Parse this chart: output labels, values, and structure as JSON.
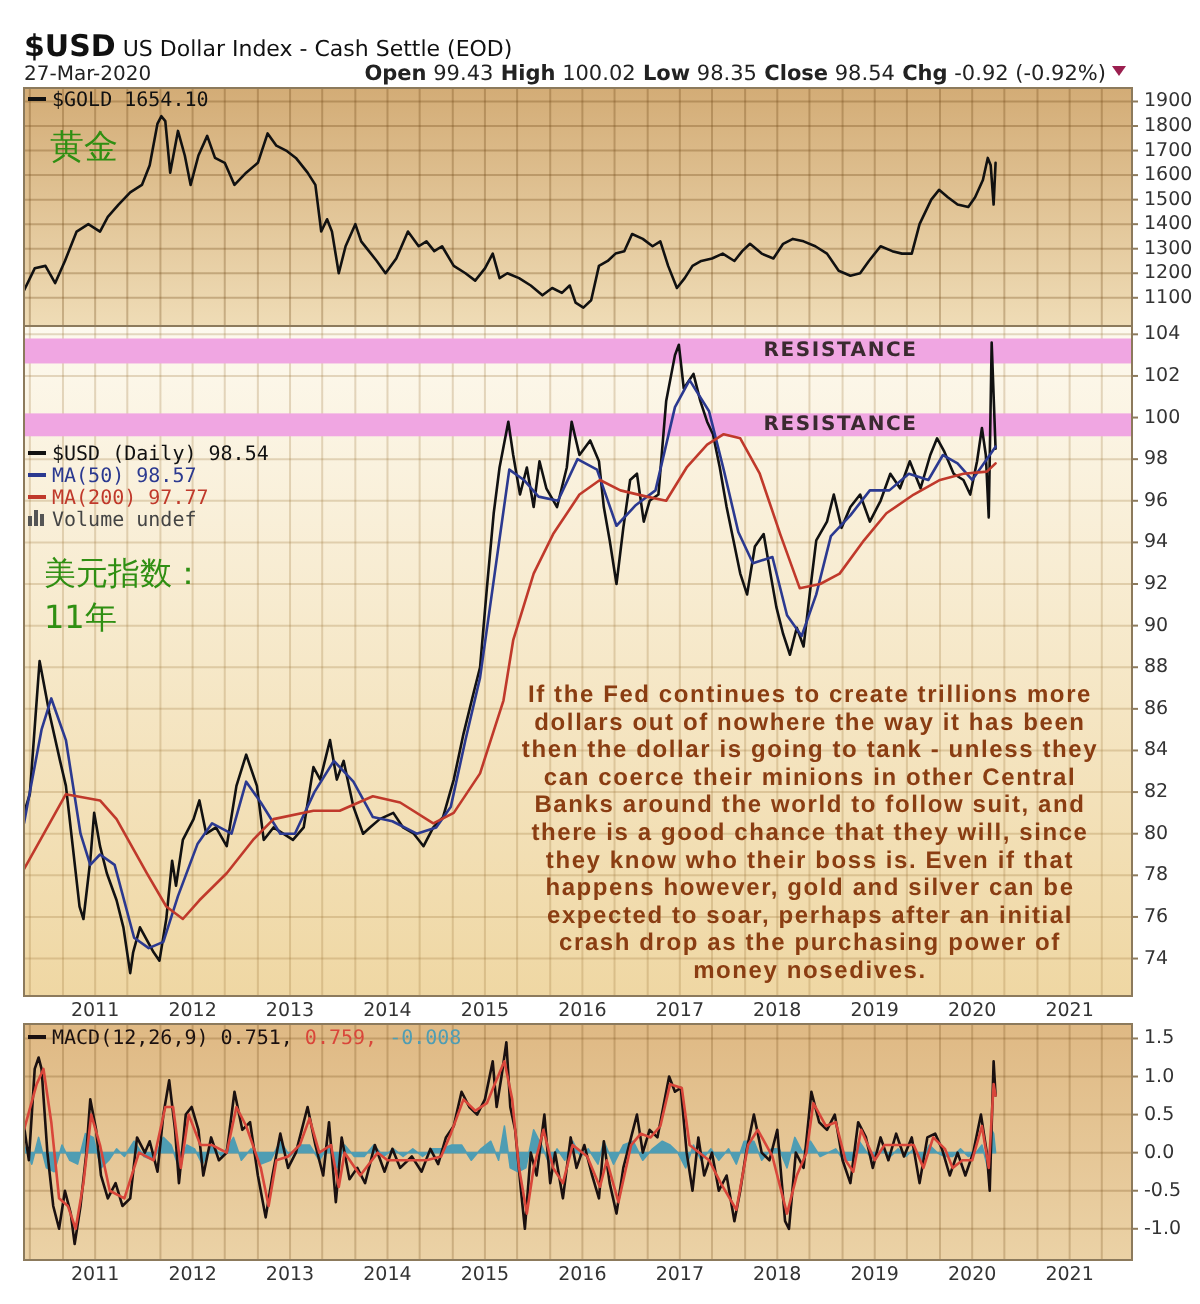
{
  "chart_data": [
    {
      "type": "line",
      "title": "$USD US Dollar Index - Cash Settle (EOD)",
      "subtitle": "27-Mar-2020",
      "annotations": [
        "Open 99.43 High 100.02 Low 98.35 Close 98.54 Chg -0.92 (-0.92%)",
        "黄金"
      ],
      "xlim": [
        2010.27,
        2021.64
      ],
      "ylim": [
        985,
        1955
      ],
      "xticks": [
        {
          "value": 2010.33,
          "label": null
        },
        {
          "value": 2010.67,
          "label": null
        },
        2011,
        {
          "value": 2011.33,
          "label": null
        },
        {
          "value": 2011.67,
          "label": null
        },
        2012,
        {
          "value": 2012.33,
          "label": null
        },
        {
          "value": 2012.67,
          "label": null
        },
        2013,
        {
          "value": 2013.33,
          "label": null
        },
        {
          "value": 2013.67,
          "label": null
        },
        2014,
        {
          "value": 2014.33,
          "label": null
        },
        {
          "value": 2014.67,
          "label": null
        },
        2015,
        {
          "value": 2015.33,
          "label": null
        },
        {
          "value": 2015.67,
          "label": null
        },
        2016,
        {
          "value": 2016.33,
          "label": null
        },
        {
          "value": 2016.67,
          "label": null
        },
        2017,
        {
          "value": 2017.33,
          "label": null
        },
        {
          "value": 2017.67,
          "label": null
        },
        2018,
        {
          "value": 2018.33,
          "label": null
        },
        {
          "value": 2018.67,
          "label": null
        },
        2019,
        {
          "value": 2019.33,
          "label": null
        },
        {
          "value": 2019.67,
          "label": null
        },
        2020,
        {
          "value": 2020.33,
          "label": null
        },
        {
          "value": 2020.67,
          "label": null
        },
        2021,
        {
          "value": 2021.33,
          "label": null
        }
      ],
      "yticks": [
        1100,
        1200,
        1300,
        1400,
        1500,
        1600,
        1700,
        1800,
        1900
      ],
      "tick_labels": "y",
      "grid": true,
      "legend": "top left",
      "series": [
        {
          "name": "$GOLD 1654.10",
          "color": "#111111",
          "x": [
            2010.27,
            2010.38,
            2010.49,
            2010.59,
            2010.69,
            2010.81,
            2010.93,
            2011.05,
            2011.13,
            2011.24,
            2011.36,
            2011.48,
            2011.56,
            2011.64,
            2011.68,
            2011.72,
            2011.77,
            2011.85,
            2011.92,
            2011.98,
            2012.06,
            2012.15,
            2012.23,
            2012.33,
            2012.43,
            2012.55,
            2012.67,
            2012.77,
            2012.86,
            2012.96,
            2013.06,
            2013.18,
            2013.26,
            2013.32,
            2013.38,
            2013.43,
            2013.5,
            2013.57,
            2013.67,
            2013.73,
            2013.81,
            2013.89,
            2013.98,
            2014.09,
            2014.21,
            2014.32,
            2014.4,
            2014.48,
            2014.56,
            2014.68,
            2014.8,
            2014.9,
            2015,
            2015.08,
            2015.15,
            2015.23,
            2015.35,
            2015.47,
            2015.59,
            2015.69,
            2015.79,
            2015.87,
            2015.93,
            2016.01,
            2016.09,
            2016.17,
            2016.26,
            2016.34,
            2016.43,
            2016.51,
            2016.62,
            2016.72,
            2016.8,
            2016.88,
            2016.97,
            2017.05,
            2017.13,
            2017.22,
            2017.33,
            2017.44,
            2017.56,
            2017.64,
            2017.72,
            2017.84,
            2017.96,
            2018.06,
            2018.16,
            2018.27,
            2018.39,
            2018.51,
            2018.63,
            2018.75,
            2018.85,
            2018.94,
            2019.06,
            2019.18,
            2019.28,
            2019.38,
            2019.46,
            2019.58,
            2019.66,
            2019.75,
            2019.85,
            2019.96,
            2020.03,
            2020.11,
            2020.16,
            2020.19,
            2020.22,
            2020.24
          ],
          "values": [
            1130,
            1220,
            1230,
            1160,
            1250,
            1370,
            1400,
            1370,
            1430,
            1480,
            1530,
            1560,
            1640,
            1810,
            1840,
            1820,
            1610,
            1780,
            1680,
            1560,
            1680,
            1760,
            1670,
            1650,
            1560,
            1610,
            1650,
            1770,
            1720,
            1700,
            1670,
            1610,
            1560,
            1370,
            1420,
            1370,
            1200,
            1310,
            1400,
            1330,
            1290,
            1250,
            1200,
            1260,
            1370,
            1310,
            1330,
            1290,
            1310,
            1230,
            1200,
            1170,
            1220,
            1280,
            1180,
            1200,
            1180,
            1150,
            1110,
            1140,
            1120,
            1150,
            1080,
            1060,
            1090,
            1230,
            1250,
            1280,
            1290,
            1360,
            1340,
            1310,
            1330,
            1230,
            1140,
            1180,
            1230,
            1250,
            1260,
            1280,
            1250,
            1290,
            1320,
            1280,
            1260,
            1320,
            1340,
            1330,
            1310,
            1280,
            1210,
            1190,
            1200,
            1250,
            1310,
            1290,
            1280,
            1280,
            1400,
            1500,
            1540,
            1510,
            1480,
            1470,
            1510,
            1580,
            1670,
            1640,
            1480,
            1650
          ]
        }
      ]
    },
    {
      "type": "line",
      "annotations": [
        "Volume undef",
        "美元指数：",
        "11年",
        "If the Fed continues to create trillions more dollars out of nowhere the way it has been then the dollar is going to tank - unless they can coerce their minions in other Central Banks around the world to follow suit, and there is a good chance that they will, since they know who their boss is. Even if that happens however, gold and silver can be expected to soar, perhaps after an initial crash drop as the purchasing power of money nosedives."
      ],
      "xlim": [
        2010.27,
        2021.64
      ],
      "ylim": [
        72.2,
        104.4
      ],
      "xticks": [
        {
          "value": 2010.33,
          "label": null
        },
        {
          "value": 2010.67,
          "label": null
        },
        2011,
        {
          "value": 2011.33,
          "label": null
        },
        {
          "value": 2011.67,
          "label": null
        },
        2012,
        {
          "value": 2012.33,
          "label": null
        },
        {
          "value": 2012.67,
          "label": null
        },
        2013,
        {
          "value": 2013.33,
          "label": null
        },
        {
          "value": 2013.67,
          "label": null
        },
        2014,
        {
          "value": 2014.33,
          "label": null
        },
        {
          "value": 2014.67,
          "label": null
        },
        2015,
        {
          "value": 2015.33,
          "label": null
        },
        {
          "value": 2015.67,
          "label": null
        },
        2016,
        {
          "value": 2016.33,
          "label": null
        },
        {
          "value": 2016.67,
          "label": null
        },
        2017,
        {
          "value": 2017.33,
          "label": null
        },
        {
          "value": 2017.67,
          "label": null
        },
        2018,
        {
          "value": 2018.33,
          "label": null
        },
        {
          "value": 2018.67,
          "label": null
        },
        2019,
        {
          "value": 2019.33,
          "label": null
        },
        {
          "value": 2019.67,
          "label": null
        },
        2020,
        {
          "value": 2020.33,
          "label": null
        },
        {
          "value": 2020.67,
          "label": null
        },
        2021,
        {
          "value": 2021.33,
          "label": null
        }
      ],
      "yticks": [
        74,
        76,
        78,
        80,
        82,
        84,
        86,
        88,
        90,
        92,
        94,
        96,
        98,
        100,
        102,
        104
      ],
      "grid": true,
      "legend": "top left",
      "bands": [
        {
          "axis": "y",
          "from": 102.6,
          "to": 103.8,
          "label": "RESISTANCE",
          "color": "#f0a6e2"
        },
        {
          "axis": "y",
          "from": 99.1,
          "to": 100.2,
          "label": "RESISTANCE",
          "color": "#f0a6e2"
        }
      ],
      "series": [
        {
          "name": "$USD (Daily) 98.54",
          "color": "#111111",
          "x": [
            2010.27,
            2010.33,
            2010.4,
            2010.43,
            2010.53,
            2010.64,
            2010.7,
            2010.77,
            2010.84,
            2010.88,
            2010.95,
            2010.99,
            2011.05,
            2011.12,
            2011.22,
            2011.29,
            2011.36,
            2011.39,
            2011.46,
            2011.53,
            2011.6,
            2011.66,
            2011.73,
            2011.79,
            2011.83,
            2011.9,
            2012.01,
            2012.07,
            2012.14,
            2012.24,
            2012.35,
            2012.45,
            2012.55,
            2012.66,
            2012.73,
            2012.83,
            2012.93,
            2013.03,
            2013.14,
            2013.24,
            2013.31,
            2013.41,
            2013.48,
            2013.55,
            2013.65,
            2013.75,
            2013.82,
            2013.92,
            2014.06,
            2014.16,
            2014.27,
            2014.37,
            2014.47,
            2014.57,
            2014.68,
            2014.78,
            2014.88,
            2014.95,
            2015.02,
            2015.09,
            2015.15,
            2015.24,
            2015.29,
            2015.36,
            2015.43,
            2015.5,
            2015.56,
            2015.63,
            2015.74,
            2015.84,
            2015.89,
            2015.97,
            2016.08,
            2016.17,
            2016.22,
            2016.28,
            2016.35,
            2016.42,
            2016.49,
            2016.56,
            2016.63,
            2016.69,
            2016.78,
            2016.86,
            2016.95,
            2016.99,
            2017.04,
            2017.14,
            2017.21,
            2017.28,
            2017.34,
            2017.41,
            2017.48,
            2017.55,
            2017.62,
            2017.69,
            2017.77,
            2017.86,
            2017.93,
            2017.99,
            2018.06,
            2018.13,
            2018.2,
            2018.27,
            2018.34,
            2018.4,
            2018.51,
            2018.58,
            2018.66,
            2018.75,
            2018.85,
            2018.95,
            2019.06,
            2019.16,
            2019.26,
            2019.36,
            2019.47,
            2019.57,
            2019.64,
            2019.71,
            2019.81,
            2019.91,
            2019.98,
            2020.05,
            2020.1,
            2020.14,
            2020.17,
            2020.2,
            2020.24
          ],
          "values": [
            81,
            81.9,
            86.4,
            88.3,
            85.8,
            83.5,
            82.3,
            79.4,
            76.5,
            75.9,
            78.7,
            81,
            79.4,
            78.1,
            76.8,
            75.5,
            73.3,
            74.3,
            75.5,
            74.9,
            74.3,
            73.9,
            75.9,
            78.7,
            77.5,
            79.7,
            80.7,
            81.6,
            80,
            80.3,
            79.4,
            82.3,
            83.8,
            82.3,
            79.7,
            80.3,
            80,
            79.7,
            80.3,
            83.2,
            82.6,
            84.5,
            82.6,
            83.5,
            81.3,
            80,
            80.3,
            80.7,
            81,
            80.3,
            80,
            79.4,
            80.3,
            80.8,
            82.6,
            84.8,
            86.7,
            88,
            91.8,
            95.4,
            97.6,
            99.8,
            98.2,
            96.3,
            97.6,
            95.7,
            97.9,
            96.6,
            95.7,
            97.6,
            99.8,
            98.2,
            98.9,
            97.9,
            95.7,
            94.1,
            92,
            94.7,
            97,
            97.3,
            95,
            96,
            96.3,
            100.8,
            103,
            103.5,
            101.4,
            102.1,
            100.8,
            99.8,
            99.2,
            97.6,
            95.7,
            94.1,
            92.5,
            91.5,
            93.8,
            94.4,
            92.5,
            90.9,
            89.6,
            88.6,
            89.9,
            89,
            91.8,
            94.1,
            95,
            96.3,
            94.7,
            95.7,
            96.3,
            95,
            96,
            97.3,
            96.6,
            97.9,
            96.6,
            98.2,
            99,
            98.4,
            97.3,
            97,
            96.3,
            97.9,
            99.5,
            98.2,
            95.2,
            103.6,
            98.5
          ]
        },
        {
          "name": "MA(50) 98.57",
          "color": "#2b3990",
          "x": [
            2010.27,
            2010.45,
            2010.55,
            2010.7,
            2010.85,
            2010.95,
            2011.05,
            2011.2,
            2011.4,
            2011.55,
            2011.7,
            2011.85,
            2012.05,
            2012.2,
            2012.4,
            2012.55,
            2012.7,
            2012.9,
            2013.05,
            2013.25,
            2013.45,
            2013.65,
            2013.85,
            2014.05,
            2014.3,
            2014.5,
            2014.65,
            2014.8,
            2014.95,
            2015.1,
            2015.25,
            2015.4,
            2015.55,
            2015.75,
            2015.95,
            2016.15,
            2016.35,
            2016.55,
            2016.75,
            2016.95,
            2017.1,
            2017.3,
            2017.45,
            2017.6,
            2017.75,
            2017.95,
            2018.1,
            2018.25,
            2018.4,
            2018.55,
            2018.75,
            2018.95,
            2019.15,
            2019.35,
            2019.55,
            2019.7,
            2019.85,
            2020,
            2020.15,
            2020.24
          ],
          "values": [
            80.5,
            85,
            86.5,
            84.5,
            80,
            78.5,
            79,
            78.5,
            75,
            74.5,
            74.8,
            77,
            79.5,
            80.5,
            80,
            82.5,
            81.5,
            80,
            80,
            82,
            83.5,
            82.5,
            80.8,
            80.6,
            80,
            80.3,
            81.3,
            84.5,
            87.5,
            92.5,
            97.5,
            97,
            96.2,
            96,
            98,
            97.5,
            94.8,
            95.8,
            96.5,
            100.5,
            101.8,
            100.3,
            97.5,
            94.5,
            93,
            93.3,
            90.5,
            89.5,
            91.5,
            94.3,
            95.3,
            96.5,
            96.5,
            97.3,
            97,
            98.2,
            97.8,
            97,
            98,
            98.6
          ]
        },
        {
          "name": "MA(200) 97.77",
          "color": "#c0392b",
          "x": [
            2010.27,
            2010.7,
            2011.05,
            2011.22,
            2011.53,
            2011.73,
            2011.9,
            2012.07,
            2012.35,
            2012.62,
            2012.83,
            2013.24,
            2013.51,
            2013.85,
            2014.13,
            2014.47,
            2014.68,
            2014.95,
            2015.19,
            2015.29,
            2015.5,
            2015.7,
            2015.97,
            2016.18,
            2016.39,
            2016.66,
            2016.86,
            2017.07,
            2017.28,
            2017.45,
            2017.62,
            2017.82,
            2018.03,
            2018.23,
            2018.44,
            2018.64,
            2018.89,
            2019.12,
            2019.4,
            2019.67,
            2019.91,
            2020.15,
            2020.24
          ],
          "values": [
            78.3,
            81.9,
            81.6,
            80.7,
            78.1,
            76.5,
            75.9,
            76.8,
            78.1,
            79.7,
            80.7,
            81.1,
            81.1,
            81.8,
            81.5,
            80.5,
            81,
            82.9,
            86.4,
            89.3,
            92.5,
            94.4,
            96.3,
            97,
            96.5,
            96.2,
            96,
            97.6,
            98.7,
            99.2,
            99,
            97.3,
            94.4,
            91.8,
            92,
            92.5,
            94.1,
            95.4,
            96.3,
            97,
            97.3,
            97.4,
            97.8
          ]
        }
      ]
    },
    {
      "type": "line",
      "xlim": [
        2010.27,
        2021.64
      ],
      "ylim": [
        -1.41,
        1.69
      ],
      "xticks": [
        {
          "value": 2010.33,
          "label": null
        },
        {
          "value": 2010.67,
          "label": null
        },
        2011,
        {
          "value": 2011.33,
          "label": null
        },
        {
          "value": 2011.67,
          "label": null
        },
        2012,
        {
          "value": 2012.33,
          "label": null
        },
        {
          "value": 2012.67,
          "label": null
        },
        2013,
        {
          "value": 2013.33,
          "label": null
        },
        {
          "value": 2013.67,
          "label": null
        },
        2014,
        {
          "value": 2014.33,
          "label": null
        },
        {
          "value": 2014.67,
          "label": null
        },
        2015,
        {
          "value": 2015.33,
          "label": null
        },
        {
          "value": 2015.67,
          "label": null
        },
        2016,
        {
          "value": 2016.33,
          "label": null
        },
        {
          "value": 2016.67,
          "label": null
        },
        2017,
        {
          "value": 2017.33,
          "label": null
        },
        {
          "value": 2017.67,
          "label": null
        },
        2018,
        {
          "value": 2018.33,
          "label": null
        },
        {
          "value": 2018.67,
          "label": null
        },
        2019,
        {
          "value": 2019.33,
          "label": null
        },
        {
          "value": 2019.67,
          "label": null
        },
        2020,
        {
          "value": 2020.33,
          "label": null
        },
        {
          "value": 2020.67,
          "label": null
        },
        2021,
        {
          "value": 2021.33,
          "label": null
        }
      ],
      "yticks": [
        1.5,
        {
          "value": 1,
          "label": "1.0"
        },
        0.5,
        {
          "value": 0,
          "label": "0.0"
        },
        -0.5,
        {
          "value": -1,
          "label": "-1.0"
        }
      ],
      "grid": true,
      "legend": "top left",
      "series": [
        {
          "name": "MACD(12,26,9) 0.751,",
          "color": "#1a1010",
          "x": [
            2010.27,
            2010.32,
            2010.38,
            2010.42,
            2010.45,
            2010.51,
            2010.57,
            2010.63,
            2010.69,
            2010.75,
            2010.79,
            2010.85,
            2010.91,
            2010.95,
            2011.01,
            2011.06,
            2011.13,
            2011.21,
            2011.28,
            2011.36,
            2011.43,
            2011.51,
            2011.56,
            2011.64,
            2011.7,
            2011.76,
            2011.82,
            2011.86,
            2011.93,
            2011.99,
            2012.06,
            2012.11,
            2012.19,
            2012.27,
            2012.35,
            2012.43,
            2012.51,
            2012.59,
            2012.67,
            2012.75,
            2012.82,
            2012.9,
            2012.98,
            2013.06,
            2013.18,
            2013.26,
            2013.34,
            2013.4,
            2013.47,
            2013.53,
            2013.61,
            2013.69,
            2013.77,
            2013.87,
            2013.97,
            2014.05,
            2014.13,
            2014.25,
            2014.35,
            2014.44,
            2014.52,
            2014.6,
            2014.68,
            2014.76,
            2014.84,
            2014.92,
            2015,
            2015.08,
            2015.12,
            2015.17,
            2015.22,
            2015.26,
            2015.31,
            2015.37,
            2015.41,
            2015.47,
            2015.53,
            2015.61,
            2015.67,
            2015.72,
            2015.8,
            2015.88,
            2015.94,
            2016.02,
            2016.1,
            2016.17,
            2016.22,
            2016.28,
            2016.35,
            2016.42,
            2016.5,
            2016.56,
            2016.62,
            2016.69,
            2016.77,
            2016.83,
            2016.89,
            2016.95,
            2017.01,
            2017.07,
            2017.13,
            2017.19,
            2017.25,
            2017.33,
            2017.4,
            2017.48,
            2017.56,
            2017.62,
            2017.68,
            2017.76,
            2017.84,
            2017.92,
            2018,
            2018.08,
            2018.12,
            2018.19,
            2018.27,
            2018.35,
            2018.43,
            2018.51,
            2018.59,
            2018.67,
            2018.75,
            2018.83,
            2018.91,
            2018.98,
            2019.06,
            2019.14,
            2019.22,
            2019.3,
            2019.38,
            2019.46,
            2019.54,
            2019.62,
            2019.69,
            2019.77,
            2019.85,
            2019.93,
            2020.01,
            2020.09,
            2020.15,
            2020.18,
            2020.22,
            2020.24
          ],
          "values": [
            0.35,
            -0.1,
            1.1,
            1.25,
            1.1,
            0,
            -0.7,
            -1,
            -0.5,
            -0.8,
            -1.2,
            -0.7,
            0,
            0.7,
            0.3,
            -0.3,
            -0.6,
            -0.4,
            -0.7,
            -0.6,
            0.2,
            0,
            0.15,
            -0.25,
            0.5,
            0.95,
            0.3,
            -0.4,
            0.5,
            0.6,
            0.3,
            -0.3,
            0.2,
            -0.1,
            0,
            0.8,
            0.3,
            0.4,
            -0.3,
            -0.85,
            -0.3,
            0.25,
            -0.2,
            0,
            0.6,
            0.1,
            -0.3,
            0.4,
            -0.65,
            0.2,
            -0.35,
            -0.2,
            -0.4,
            0.1,
            -0.25,
            0.05,
            -0.2,
            -0.05,
            -0.25,
            0.05,
            -0.15,
            0.2,
            0.35,
            0.8,
            0.6,
            0.5,
            0.7,
            1.2,
            0.6,
            1,
            1.45,
            0.6,
            0.3,
            -0.5,
            -1,
            0,
            -0.3,
            0.5,
            -0.4,
            0,
            -0.6,
            0.2,
            -0.2,
            0.1,
            -0.3,
            -0.6,
            0.15,
            -0.4,
            -0.8,
            -0.2,
            0.2,
            0.5,
            0,
            0.3,
            0.2,
            0.6,
            1,
            0.8,
            0.85,
            0,
            -0.5,
            0.2,
            -0.3,
            0,
            -0.5,
            -0.3,
            -0.9,
            -0.5,
            0,
            0.5,
            0,
            -0.1,
            0.3,
            -0.9,
            -1,
            0,
            -0.2,
            0.8,
            0.4,
            0.3,
            0.5,
            -0.1,
            -0.4,
            0.4,
            0.2,
            -0.2,
            0.2,
            -0.1,
            0.25,
            -0.05,
            0.2,
            -0.4,
            0.2,
            0.25,
            0.05,
            -0.3,
            0,
            -0.3,
            0,
            0.5,
            0,
            -0.5,
            1.2,
            0.75
          ]
        },
        {
          "name": "0.759,",
          "color": "#d9463a",
          "x": [
            2010.27,
            2010.4,
            2010.47,
            2010.55,
            2010.63,
            2010.72,
            2010.8,
            2010.88,
            2010.96,
            2011.05,
            2011.15,
            2011.3,
            2011.45,
            2011.6,
            2011.72,
            2011.8,
            2011.88,
            2011.96,
            2012.08,
            2012.2,
            2012.35,
            2012.45,
            2012.55,
            2012.7,
            2012.78,
            2012.86,
            2012.98,
            2013.1,
            2013.2,
            2013.3,
            2013.42,
            2013.5,
            2013.56,
            2013.72,
            2013.9,
            2014,
            2014.2,
            2014.4,
            2014.55,
            2014.65,
            2014.78,
            2014.9,
            2015.02,
            2015.1,
            2015.2,
            2015.28,
            2015.35,
            2015.43,
            2015.5,
            2015.6,
            2015.7,
            2015.8,
            2015.9,
            2016.05,
            2016.18,
            2016.25,
            2016.37,
            2016.5,
            2016.6,
            2016.7,
            2016.8,
            2016.9,
            2017.02,
            2017.1,
            2017.2,
            2017.3,
            2017.42,
            2017.58,
            2017.7,
            2017.8,
            2017.95,
            2018.1,
            2018.2,
            2018.3,
            2018.37,
            2018.5,
            2018.6,
            2018.7,
            2018.78,
            2018.86,
            2019,
            2019.1,
            2019.25,
            2019.4,
            2019.5,
            2019.6,
            2019.72,
            2019.8,
            2019.9,
            2020,
            2020.1,
            2020.17,
            2020.22,
            2020.24
          ],
          "values": [
            0.3,
            0.9,
            1.1,
            0.4,
            -0.6,
            -0.7,
            -1,
            -0.4,
            0.5,
            0.1,
            -0.5,
            -0.6,
            0,
            -0.1,
            0.6,
            0.6,
            -0.2,
            0.5,
            0.1,
            0.1,
            0,
            0.6,
            0.35,
            -0.2,
            -0.7,
            -0.1,
            -0.05,
            0.1,
            0.45,
            0,
            0.1,
            -0.45,
            0,
            -0.3,
            0,
            -0.1,
            -0.1,
            -0.1,
            -0.05,
            0.25,
            0.7,
            0.55,
            0.65,
            0.9,
            1.2,
            0.7,
            -0.2,
            -0.8,
            -0.2,
            0.3,
            -0.2,
            -0.4,
            0.1,
            -0.05,
            -0.45,
            -0.1,
            -0.65,
            0.1,
            0.25,
            0.2,
            0.35,
            0.9,
            0.85,
            0.1,
            0,
            -0.1,
            -0.4,
            -0.75,
            0.1,
            0.3,
            -0.05,
            -0.8,
            -0.3,
            0,
            0.65,
            0.35,
            0.4,
            -0.1,
            -0.25,
            0.3,
            -0.1,
            0.1,
            0.1,
            0.1,
            -0.2,
            0.2,
            0.05,
            -0.2,
            -0.1,
            -0.1,
            0.35,
            -0.2,
            0.9,
            0.75
          ]
        },
        {
          "name": "-0.008",
          "type": "area",
          "color": "#4f9db3",
          "x": [
            2010.27,
            2010.35,
            2010.42,
            2010.5,
            2010.58,
            2010.66,
            2010.74,
            2010.82,
            2010.9,
            2010.98,
            2011.06,
            2011.14,
            2011.22,
            2011.3,
            2011.4,
            2011.5,
            2011.6,
            2011.7,
            2011.78,
            2011.86,
            2011.94,
            2012.02,
            2012.1,
            2012.2,
            2012.3,
            2012.42,
            2012.5,
            2012.6,
            2012.7,
            2012.8,
            2012.9,
            2013,
            2013.1,
            2013.2,
            2013.3,
            2013.4,
            2013.48,
            2013.56,
            2013.66,
            2013.76,
            2013.86,
            2013.96,
            2014.06,
            2014.16,
            2014.26,
            2014.36,
            2014.46,
            2014.56,
            2014.66,
            2014.76,
            2014.86,
            2014.96,
            2015.06,
            2015.14,
            2015.2,
            2015.26,
            2015.34,
            2015.42,
            2015.5,
            2015.58,
            2015.66,
            2015.74,
            2015.82,
            2015.9,
            2015.98,
            2016.06,
            2016.16,
            2016.22,
            2016.32,
            2016.42,
            2016.52,
            2016.62,
            2016.72,
            2016.82,
            2016.9,
            2016.98,
            2017.06,
            2017.14,
            2017.22,
            2017.32,
            2017.4,
            2017.5,
            2017.58,
            2017.66,
            2017.76,
            2017.84,
            2017.94,
            2018.02,
            2018.1,
            2018.18,
            2018.26,
            2018.34,
            2018.44,
            2018.52,
            2018.6,
            2018.68,
            2018.76,
            2018.84,
            2018.92,
            2019,
            2019.08,
            2019.16,
            2019.24,
            2019.32,
            2019.4,
            2019.48,
            2019.56,
            2019.64,
            2019.72,
            2019.8,
            2019.88,
            2019.96,
            2020.04,
            2020.1,
            2020.16,
            2020.2,
            2020.22,
            2020.24
          ],
          "values": [
            0.1,
            -0.15,
            0.2,
            -0.2,
            -0.25,
            0.1,
            -0.1,
            -0.15,
            0.25,
            0.2,
            -0.2,
            -0.1,
            0.05,
            -0.05,
            0.15,
            -0.05,
            -0.1,
            0.2,
            0.1,
            -0.2,
            0.1,
            0.05,
            -0.15,
            0.1,
            -0.05,
            0.2,
            -0.1,
            0.05,
            -0.15,
            -0.1,
            0.15,
            -0.05,
            0.1,
            0.1,
            -0.1,
            0.1,
            -0.2,
            0.1,
            -0.05,
            -0.05,
            0.1,
            -0.05,
            0.05,
            -0.05,
            0.05,
            -0.05,
            0.05,
            0.05,
            0.1,
            0.1,
            -0.1,
            0.05,
            0.15,
            -0.1,
            0.35,
            -0.2,
            -0.25,
            -0.2,
            0.3,
            0.1,
            -0.15,
            0.05,
            -0.1,
            0.15,
            -0.05,
            0.05,
            -0.15,
            0.15,
            -0.15,
            0.1,
            0.15,
            -0.1,
            0.05,
            0.15,
            0.1,
            0,
            -0.2,
            0.1,
            -0.1,
            0.05,
            -0.1,
            0.05,
            -0.15,
            0.15,
            0.15,
            -0.1,
            0.05,
            0.05,
            -0.2,
            0.2,
            0,
            0.15,
            -0.05,
            0,
            0.05,
            -0.1,
            -0.1,
            0.15,
            0,
            -0.1,
            0.05,
            -0.05,
            0.05,
            -0.05,
            0.05,
            -0.1,
            0.1,
            0,
            -0.05,
            -0.05,
            0.05,
            -0.05,
            0,
            0.1,
            -0.2,
            0.3,
            0.25,
            0
          ]
        }
      ]
    }
  ]
}
